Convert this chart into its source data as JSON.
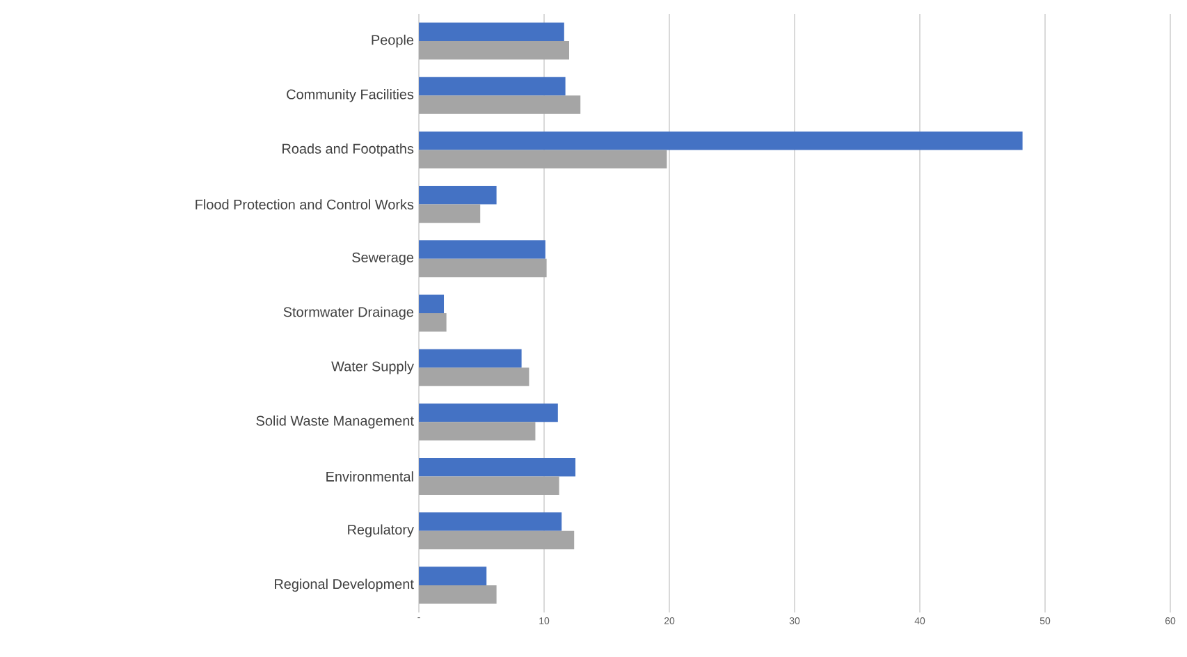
{
  "chart_data": {
    "type": "bar",
    "orientation": "horizontal",
    "categories": [
      "People",
      "Community Facilities",
      "Roads and Footpaths",
      "Flood Protection and Control Works",
      "Sewerage",
      "Stormwater Drainage",
      "Water Supply",
      "Solid Waste Management",
      "Environmental",
      "Regulatory",
      "Regional Development"
    ],
    "series": [
      {
        "color": "#4472c4",
        "values": [
          11.6,
          11.7,
          48.2,
          6.2,
          10.1,
          2.0,
          8.2,
          11.1,
          12.5,
          11.4,
          5.4
        ]
      },
      {
        "color": "#a5a5a5",
        "values": [
          12.0,
          12.9,
          19.8,
          4.9,
          10.2,
          2.2,
          8.8,
          9.3,
          11.2,
          12.4,
          6.2
        ]
      }
    ],
    "xlim": [
      0,
      60
    ],
    "xticks": [
      {
        "value": 0,
        "label": "-"
      },
      10,
      20,
      30,
      40,
      50,
      60
    ],
    "grid": "x"
  }
}
